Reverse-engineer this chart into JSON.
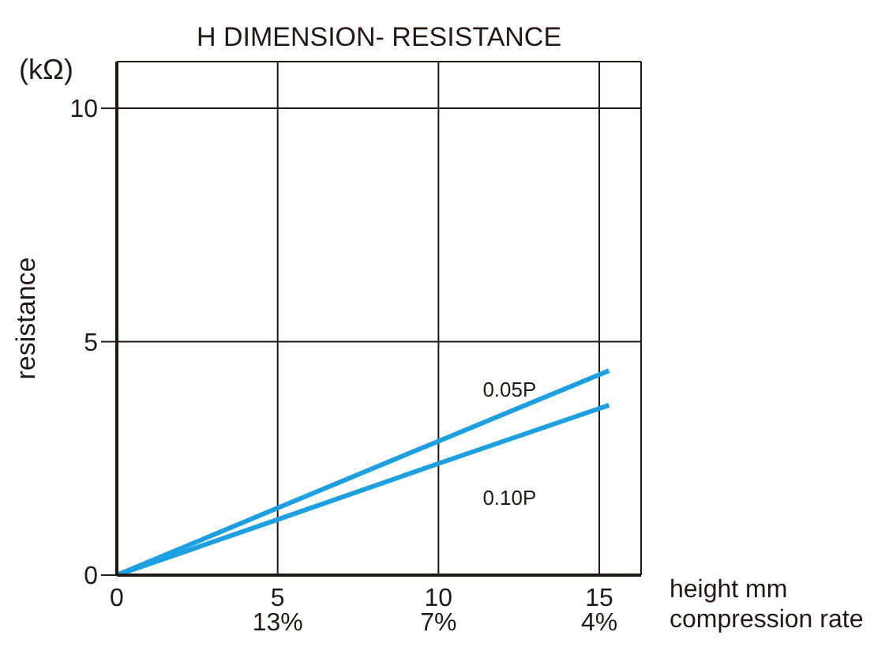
{
  "chart_data": {
    "type": "line",
    "title": "H DIMENSION- RESISTANCE",
    "xlabel": "height mm",
    "ylabel": "resistance",
    "annotations": [
      "(kΩ)",
      "compression rate",
      "13%",
      "7%",
      "4%"
    ],
    "x": [
      0,
      5,
      10,
      15.3
    ],
    "series": [
      {
        "name": "0.05P",
        "color": "#1ea0e0",
        "values": [
          0,
          1.44,
          2.87,
          4.38
        ]
      },
      {
        "name": "0.10P",
        "color": "#1ea0e0",
        "values": [
          0,
          1.19,
          2.39,
          3.64
        ]
      }
    ],
    "xlim": [
      0,
      16.3
    ],
    "xticks": [
      0,
      5,
      10,
      15
    ],
    "ylim": [
      0,
      11
    ],
    "yticks": [
      0,
      5,
      10
    ],
    "grid": true,
    "marker": "none",
    "line_style": "solid"
  }
}
